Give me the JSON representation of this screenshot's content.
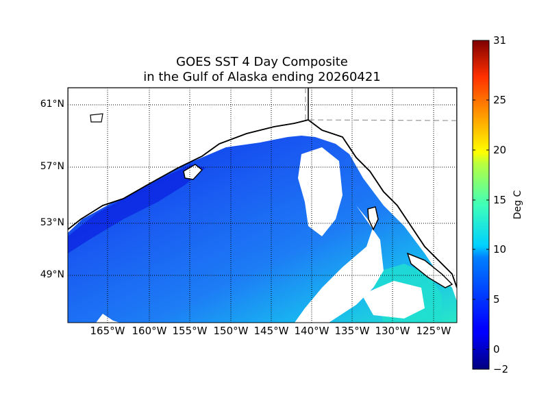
{
  "title": {
    "line1": "GOES SST 4 Day Composite",
    "line2": "in the Gulf of Alaska ending 20260421"
  },
  "map": {
    "lat_labels": [
      "61°N",
      "57°N",
      "53°N",
      "49°N"
    ],
    "lat_values": [
      61,
      57,
      53,
      49
    ],
    "lon_labels": [
      "165°W",
      "160°W",
      "155°W",
      "150°W",
      "145°W",
      "140°W",
      "135°W",
      "130°W",
      "125°W"
    ],
    "lon_values": [
      -165,
      -160,
      -155,
      -150,
      -145,
      -140,
      -135,
      -130,
      -125
    ],
    "grid": "dotted",
    "land_color": "#ffffff",
    "coast_color": "#000000",
    "border_style": "dashed gray"
  },
  "colorbar": {
    "label": "Deg C",
    "ticks": [
      "31",
      "25",
      "20",
      "15",
      "10",
      "5",
      "0",
      "−2"
    ],
    "tick_values": [
      31,
      25,
      20,
      15,
      10,
      5,
      0,
      -2
    ],
    "range": [
      -2,
      31
    ],
    "colormap": "jet"
  }
}
